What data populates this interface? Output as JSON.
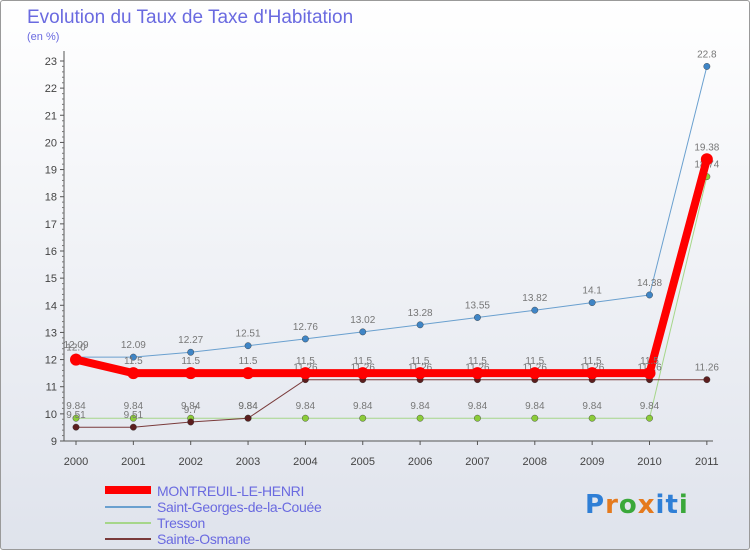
{
  "chart_data": {
    "type": "line",
    "title": "Evolution du Taux de Taxe d'Habitation",
    "subtitle": "(en %)",
    "xlabel": "",
    "ylabel": "",
    "categories": [
      "2000",
      "2001",
      "2002",
      "2003",
      "2004",
      "2005",
      "2006",
      "2007",
      "2008",
      "2009",
      "2010",
      "2011"
    ],
    "ylim": [
      9,
      23
    ],
    "yticks": [
      9,
      10,
      11,
      12,
      13,
      14,
      15,
      16,
      17,
      18,
      19,
      20,
      21,
      22,
      23
    ],
    "grid": false,
    "legend_position": "bottom-left",
    "series": [
      {
        "name": "Saint-Georges-de-la-Couée",
        "color": "#6aa0cf",
        "marker": "#3f85c6",
        "width": 1,
        "values": [
          12.09,
          12.09,
          12.27,
          12.51,
          12.76,
          13.02,
          13.28,
          13.55,
          13.82,
          14.1,
          14.38,
          22.8
        ],
        "labels": [
          "12.09",
          "12.09",
          "12.27",
          "12.51",
          "12.76",
          "13.02",
          "13.28",
          "13.55",
          "13.82",
          "14.1",
          "14.38",
          "22.8"
        ]
      },
      {
        "name": "Tresson",
        "color": "#a6d68a",
        "marker": "#8ccc3a",
        "width": 1,
        "values": [
          9.84,
          9.84,
          9.84,
          9.84,
          9.84,
          9.84,
          9.84,
          9.84,
          9.84,
          9.84,
          9.84,
          18.74
        ],
        "labels": [
          "9.84",
          "9.84",
          "9.84",
          "9.84",
          "9.84",
          "9.84",
          "9.84",
          "9.84",
          "9.84",
          "9.84",
          "9.84",
          "18.74"
        ]
      },
      {
        "name": "Sainte-Osmane",
        "color": "#7a3b3b",
        "marker": "#5c1e1e",
        "width": 1,
        "values": [
          9.51,
          9.51,
          9.7,
          9.84,
          11.26,
          11.26,
          11.26,
          11.26,
          11.26,
          11.26,
          11.26,
          11.26
        ],
        "labels": [
          "9.51",
          "9.51",
          "9.7",
          "9.84",
          "11.26",
          "11.26",
          "11.26",
          "11.26",
          "11.26",
          "11.26",
          "11.26",
          "11.26"
        ]
      },
      {
        "name": "MONTREUIL-LE-HENRI",
        "color": "#ff0000",
        "marker": "#ff0000",
        "width": 8,
        "values": [
          12.0,
          11.5,
          11.5,
          11.5,
          11.5,
          11.5,
          11.5,
          11.5,
          11.5,
          11.5,
          11.5,
          19.38
        ],
        "labels": [
          "12.0",
          "11.5",
          "11.5",
          "11.5",
          "11.5",
          "11.5",
          "11.5",
          "11.5",
          "11.5",
          "11.5",
          "11.5",
          "19.38"
        ]
      }
    ],
    "legend_order": [
      "MONTREUIL-LE-HENRI",
      "Saint-Georges-de-la-Couée",
      "Tresson",
      "Sainte-Osmane"
    ]
  }
}
